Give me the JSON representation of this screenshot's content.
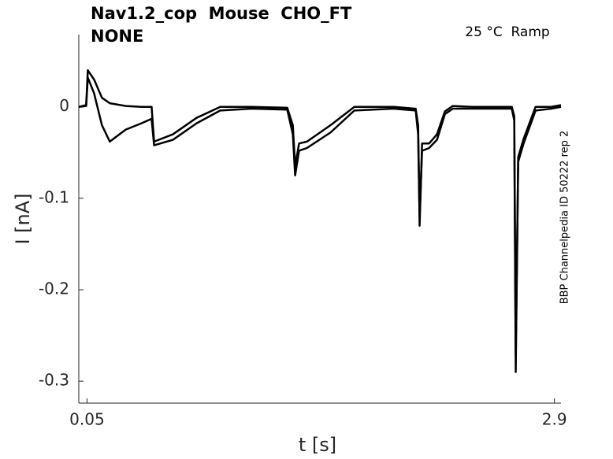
{
  "chart_data": {
    "type": "line",
    "title": "Nav1.2_cop  Mouse  CHO_FT",
    "subtitle": "NONE",
    "annotation": "25 °C  Ramp",
    "side_note": "BBP Channelpedia ID 50222 rep 2",
    "x_label": "t [s]",
    "y_label": "I [nA]",
    "x": [
      0,
      0.045,
      0.055,
      0.093,
      0.141,
      0.189,
      0.285,
      0.382,
      0.444,
      0.459,
      0.574,
      0.718,
      0.862,
      1.054,
      1.271,
      1.305,
      1.319,
      1.343,
      1.391,
      1.535,
      1.68,
      1.92,
      2.054,
      2.069,
      2.078,
      2.093,
      2.136,
      2.184,
      2.232,
      2.28,
      2.4,
      2.64,
      2.655,
      2.664,
      2.679,
      2.712,
      2.785,
      2.881,
      2.94
    ],
    "series": [
      {
        "color": "#000000",
        "values": [
          0,
          0.002,
          0.04,
          0.03,
          0.01,
          0.004,
          0.001,
          0,
          0,
          -0.038,
          -0.03,
          -0.012,
          0,
          0,
          -0.001,
          -0.02,
          -0.065,
          -0.04,
          -0.038,
          -0.02,
          0,
          0,
          -0.002,
          -0.02,
          -0.13,
          -0.04,
          -0.04,
          -0.03,
          -0.005,
          0.001,
          0,
          0,
          -0.01,
          -0.29,
          -0.055,
          -0.035,
          0,
          0,
          0.002
        ]
      },
      {
        "color": "#000000",
        "values": [
          0,
          0.001,
          0.032,
          0.015,
          -0.02,
          -0.038,
          -0.025,
          -0.018,
          -0.013,
          -0.042,
          -0.036,
          -0.018,
          -0.004,
          -0.002,
          -0.003,
          -0.03,
          -0.075,
          -0.048,
          -0.045,
          -0.028,
          -0.004,
          -0.002,
          -0.004,
          -0.03,
          -0.12,
          -0.048,
          -0.045,
          -0.036,
          -0.008,
          -0.002,
          -0.002,
          -0.002,
          -0.015,
          -0.27,
          -0.06,
          -0.04,
          -0.004,
          -0.002,
          0
        ]
      }
    ],
    "xlim": [
      0,
      2.94
    ],
    "ylim": [
      -0.324,
      0.079
    ],
    "xticks": [
      0.05,
      2.9
    ],
    "yticks": [
      0,
      -0.1,
      -0.2,
      -0.3
    ]
  }
}
